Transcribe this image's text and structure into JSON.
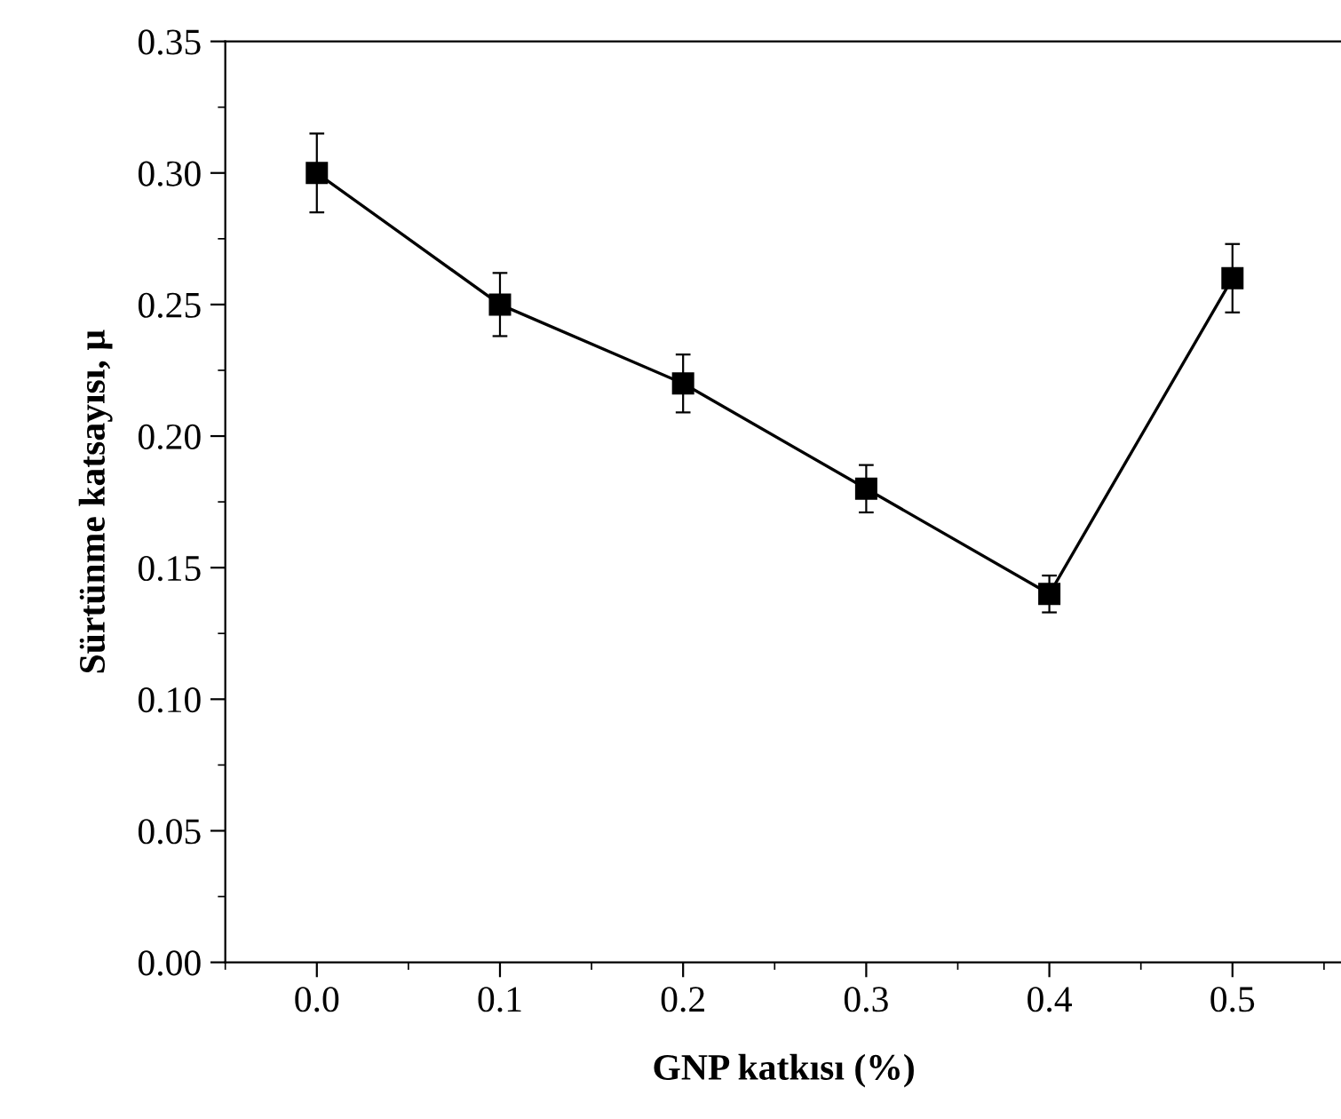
{
  "chart_data": {
    "type": "line",
    "xlabel": "GNP katkısı (%)",
    "ylabel": "Sürtünme katsayısı, µ",
    "x": [
      0.0,
      0.1,
      0.2,
      0.3,
      0.4,
      0.5
    ],
    "series": [
      {
        "color": "#000000",
        "values": [
          0.3,
          0.25,
          0.22,
          0.18,
          0.14,
          0.26
        ],
        "errors": [
          0.015,
          0.012,
          0.011,
          0.009,
          0.007,
          0.013
        ]
      }
    ],
    "xlim": [
      -0.05,
      0.56
    ],
    "ylim": [
      0.0,
      0.35
    ],
    "xticks": [
      {
        "value": 0.0,
        "label": "0.0"
      },
      0.1,
      0.2,
      0.3,
      0.4,
      0.5
    ],
    "yticks": [
      {
        "value": 0.0,
        "label": "0.00"
      },
      0.05,
      {
        "value": 0.1,
        "label": "0.10"
      },
      0.15,
      {
        "value": 0.2,
        "label": "0.20"
      },
      0.25,
      {
        "value": 0.3,
        "label": "0.30"
      },
      0.35
    ],
    "marker": "square",
    "line_style": "solid",
    "grid": false,
    "legend": false
  }
}
